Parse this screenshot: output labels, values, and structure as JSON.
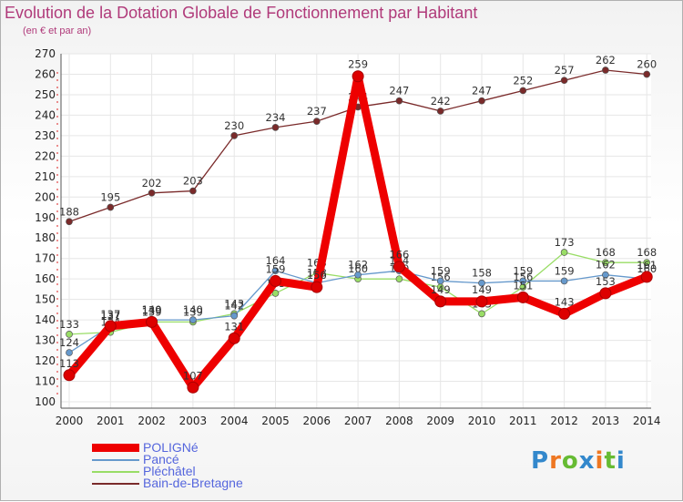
{
  "chart_data": {
    "type": "line",
    "title": "Evolution de la Dotation Globale de Fonctionnement par Habitant",
    "subtitle": "(en € et par an)",
    "xlabel": "",
    "ylabel": "",
    "ylim": [
      100,
      270
    ],
    "y_ticks": [
      100,
      110,
      120,
      130,
      140,
      150,
      160,
      170,
      180,
      190,
      200,
      210,
      220,
      230,
      240,
      250,
      260,
      270
    ],
    "categories": [
      "2000",
      "2001",
      "2002",
      "2003",
      "2004",
      "2005",
      "2006",
      "2007",
      "2008",
      "2009",
      "2010",
      "2011",
      "2012",
      "2013",
      "2014"
    ],
    "series": [
      {
        "name": "Bain-de-Bretagne",
        "color": "#7a2a2a",
        "values": [
          188,
          195,
          202,
          203,
          230,
          234,
          237,
          244,
          247,
          242,
          247,
          252,
          257,
          262,
          260
        ],
        "labels": [
          "188",
          "195",
          "202",
          "203",
          "230",
          "234",
          "237",
          "244",
          "247",
          "242",
          "247",
          "252",
          "257",
          "262",
          "260"
        ]
      },
      {
        "name": "Pléchâtel",
        "color": "#99dd66",
        "values": [
          133,
          134,
          139,
          139,
          143,
          153,
          163,
          160,
          160,
          156,
          143,
          156,
          173,
          168,
          168
        ],
        "labels": [
          "133",
          "134",
          "139",
          "139",
          "143",
          "153",
          "163",
          "160",
          "160",
          "156",
          "143",
          "156",
          "173",
          "168",
          "168"
        ]
      },
      {
        "name": "Pancé",
        "color": "#6699cc",
        "values": [
          124,
          137,
          140,
          140,
          142,
          164,
          158,
          162,
          164,
          159,
          158,
          159,
          159,
          162,
          160
        ],
        "labels": [
          "124",
          "137",
          "140",
          "140",
          "142",
          "164",
          "158",
          "162",
          "164",
          "159",
          "158",
          "159",
          "159",
          "162",
          "160"
        ]
      },
      {
        "name": "POLIGNé",
        "color": "#ee0000",
        "values": [
          113,
          137,
          139,
          107,
          131,
          159,
          156,
          259,
          166,
          149,
          149,
          151,
          143,
          153,
          161
        ],
        "labels": [
          "113",
          "137",
          "139",
          "107",
          "131",
          "159",
          "156",
          "259",
          "166",
          "149",
          "149",
          "151",
          "143",
          "153",
          "161"
        ]
      }
    ]
  },
  "legend": {
    "items": [
      {
        "name": "POLIGNé",
        "color": "#ee0000",
        "text_color": "#5566dd"
      },
      {
        "name": "Pancé",
        "color": "#6699cc",
        "text_color": "#5566dd"
      },
      {
        "name": "Pléchâtel",
        "color": "#99dd66",
        "text_color": "#5566dd"
      },
      {
        "name": "Bain-de-Bretagne",
        "color": "#7a2a2a",
        "text_color": "#5566dd"
      }
    ]
  },
  "logo": {
    "letters": [
      "P",
      "r",
      "o",
      "x",
      "i",
      "t",
      "i"
    ],
    "colors": [
      "#3388cc",
      "#ee7722",
      "#66bb33",
      "#3388cc",
      "#ee7722",
      "#66bb33",
      "#3388cc"
    ]
  }
}
